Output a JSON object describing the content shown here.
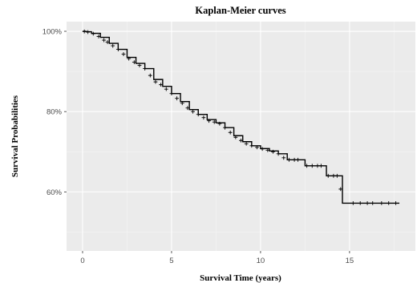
{
  "chart_data": {
    "type": "line",
    "title": "Kaplan-Meier curves",
    "xlabel": "Survival Time (years)",
    "ylabel": "Survival Probabilities",
    "xlim": [
      -0.9,
      18.7
    ],
    "ylim": [
      0.453,
      1.024
    ],
    "x_ticks": [
      0,
      5,
      10,
      15
    ],
    "x_tick_labels": [
      "0",
      "5",
      "10",
      "15"
    ],
    "y_ticks": [
      0.6,
      0.8,
      1.0
    ],
    "y_tick_labels": [
      "60%",
      "80%",
      "100%"
    ],
    "grid": true,
    "background": "#ebebeb",
    "line_color": "#000000",
    "series": [
      {
        "x": [
          0,
          0.2,
          0.5,
          1.0,
          1.5,
          2.0,
          2.5,
          3.0,
          3.5,
          4.0,
          4.5,
          5.0,
          5.5,
          6.0,
          6.5,
          7.0,
          7.5,
          8.0,
          8.5,
          9.0,
          9.5,
          10.0,
          10.5,
          11.0,
          11.5,
          12.3,
          12.5,
          13.0,
          13.5,
          13.7,
          14.0,
          14.3,
          14.6,
          15.0,
          16.0,
          17.0,
          17.8
        ],
        "y": [
          1.0,
          0.999,
          0.995,
          0.985,
          0.97,
          0.955,
          0.935,
          0.92,
          0.907,
          0.88,
          0.863,
          0.845,
          0.825,
          0.805,
          0.793,
          0.78,
          0.772,
          0.76,
          0.74,
          0.725,
          0.715,
          0.708,
          0.702,
          0.695,
          0.68,
          0.68,
          0.665,
          0.665,
          0.665,
          0.64,
          0.64,
          0.64,
          0.572,
          0.572,
          0.572,
          0.572,
          0.572
        ]
      }
    ],
    "censor_marks": {
      "x": [
        0.1,
        0.3,
        0.6,
        0.9,
        1.2,
        1.4,
        1.7,
        2.0,
        2.3,
        2.6,
        2.9,
        3.2,
        3.5,
        3.8,
        4.1,
        4.4,
        4.7,
        5.0,
        5.3,
        5.6,
        5.9,
        6.2,
        6.5,
        6.8,
        7.1,
        7.4,
        7.7,
        8.0,
        8.3,
        8.6,
        8.9,
        9.2,
        9.5,
        9.8,
        10.1,
        10.4,
        10.7,
        11.0,
        11.3,
        11.6,
        11.9,
        12.1,
        12.6,
        12.9,
        13.2,
        13.4,
        13.8,
        14.1,
        14.3,
        14.5,
        15.2,
        15.6,
        16.0,
        16.3,
        16.8,
        17.2,
        17.6
      ],
      "y": [
        0.9995,
        0.998,
        0.994,
        0.987,
        0.978,
        0.973,
        0.964,
        0.955,
        0.943,
        0.932,
        0.923,
        0.915,
        0.907,
        0.89,
        0.874,
        0.867,
        0.856,
        0.845,
        0.833,
        0.821,
        0.809,
        0.8,
        0.793,
        0.785,
        0.777,
        0.774,
        0.77,
        0.76,
        0.748,
        0.736,
        0.728,
        0.72,
        0.715,
        0.711,
        0.707,
        0.704,
        0.7,
        0.695,
        0.685,
        0.68,
        0.68,
        0.68,
        0.665,
        0.665,
        0.665,
        0.665,
        0.64,
        0.64,
        0.64,
        0.607,
        0.572,
        0.572,
        0.572,
        0.572,
        0.572,
        0.572,
        0.572
      ]
    }
  }
}
